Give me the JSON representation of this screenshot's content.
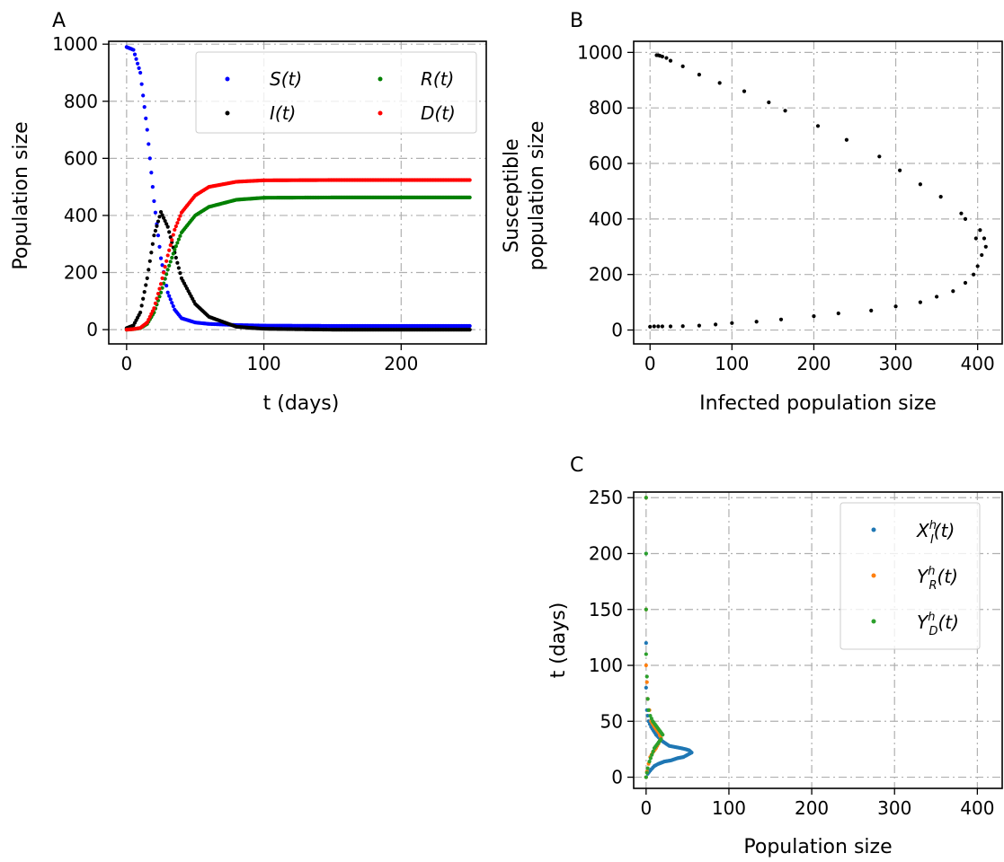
{
  "chart_data": [
    {
      "panel": "A",
      "type": "scatter",
      "xlabel": "t (days)",
      "ylabel": "Population size",
      "xlim": [
        -13,
        262
      ],
      "ylim": [
        -50,
        1010
      ],
      "xticks": [
        0,
        100,
        200
      ],
      "yticks": [
        0,
        200,
        400,
        600,
        800,
        1000
      ],
      "grid": true,
      "legend": "top-right, 2 columns",
      "series": [
        {
          "name": "S(t)",
          "color": "#0000ff",
          "x": [
            0,
            5,
            10,
            15,
            20,
            25,
            30,
            35,
            40,
            50,
            60,
            80,
            100,
            150,
            200,
            250
          ],
          "y": [
            990,
            980,
            900,
            700,
            450,
            250,
            130,
            70,
            40,
            25,
            20,
            16,
            14,
            13,
            13,
            13
          ]
        },
        {
          "name": "I(t)",
          "color": "#000000",
          "x": [
            0,
            5,
            10,
            15,
            20,
            25,
            30,
            35,
            40,
            50,
            60,
            80,
            100,
            150,
            200,
            250
          ],
          "y": [
            5,
            15,
            60,
            180,
            330,
            412,
            360,
            270,
            180,
            90,
            45,
            10,
            3,
            0,
            0,
            0
          ]
        },
        {
          "name": "R(t)",
          "color": "#008000",
          "x": [
            0,
            5,
            10,
            15,
            20,
            25,
            30,
            35,
            40,
            50,
            60,
            80,
            100,
            150,
            200,
            250
          ],
          "y": [
            0,
            2,
            5,
            20,
            60,
            130,
            210,
            280,
            340,
            400,
            430,
            455,
            462,
            463,
            463,
            463
          ]
        },
        {
          "name": "D(t)",
          "color": "#ff0000",
          "x": [
            0,
            5,
            10,
            15,
            20,
            25,
            30,
            35,
            40,
            50,
            60,
            80,
            100,
            150,
            200,
            250
          ],
          "y": [
            0,
            2,
            6,
            25,
            75,
            160,
            260,
            350,
            410,
            470,
            500,
            518,
            523,
            524,
            524,
            524
          ]
        }
      ]
    },
    {
      "panel": "B",
      "type": "scatter",
      "xlabel": "Infected population size",
      "ylabel": "Susceptible population size",
      "ylabel_lines": [
        "Susceptible",
        "population size"
      ],
      "xlim": [
        -20,
        430
      ],
      "ylim": [
        -50,
        1040
      ],
      "xticks": [
        0,
        100,
        200,
        300,
        400
      ],
      "yticks": [
        0,
        200,
        400,
        600,
        800,
        1000
      ],
      "grid": true,
      "series": [
        {
          "name": "",
          "color": "#000000",
          "x": [
            0,
            5,
            10,
            15,
            25,
            40,
            60,
            80,
            100,
            130,
            160,
            200,
            230,
            270,
            300,
            330,
            350,
            370,
            385,
            395,
            400,
            405,
            410,
            408,
            403,
            398,
            385,
            380,
            355,
            330,
            305,
            280,
            240,
            205,
            165,
            145,
            115,
            85,
            60,
            40,
            25,
            20,
            15,
            12,
            10,
            8
          ],
          "y": [
            12,
            13,
            13,
            13,
            13,
            14,
            16,
            20,
            25,
            30,
            38,
            50,
            60,
            70,
            85,
            100,
            120,
            140,
            170,
            200,
            230,
            270,
            300,
            330,
            360,
            330,
            400,
            420,
            480,
            525,
            575,
            625,
            685,
            735,
            790,
            820,
            860,
            890,
            920,
            950,
            970,
            980,
            985,
            988,
            990,
            990
          ]
        }
      ]
    },
    {
      "panel": "C",
      "type": "scatter",
      "xlabel": "Population size",
      "ylabel": "t (days)",
      "xlim": [
        -15,
        430
      ],
      "ylim": [
        -10,
        255
      ],
      "xticks": [
        0,
        100,
        200,
        300,
        400
      ],
      "yticks": [
        0,
        50,
        100,
        150,
        200,
        250
      ],
      "grid": true,
      "legend": "top-right",
      "series": [
        {
          "name": "X_I^h(t)",
          "color": "#1f77b4",
          "x": [
            0,
            2,
            5,
            10,
            15,
            22,
            30,
            38,
            45,
            50,
            55,
            52,
            48,
            42,
            35,
            28,
            20,
            12,
            6,
            3,
            2,
            1,
            0,
            0,
            0
          ],
          "y": [
            0,
            3,
            6,
            10,
            12,
            14,
            15,
            17,
            18,
            20,
            22,
            24,
            25,
            26,
            27,
            28,
            32,
            38,
            45,
            50,
            55,
            60,
            80,
            120,
            200
          ]
        },
        {
          "name": "Y_R^h(t)",
          "color": "#ff7f0e",
          "x": [
            0,
            1,
            3,
            5,
            8,
            12,
            15,
            18,
            15,
            10,
            6,
            4,
            2,
            1,
            0,
            0,
            0
          ],
          "y": [
            0,
            5,
            12,
            18,
            22,
            26,
            30,
            35,
            40,
            45,
            50,
            60,
            70,
            85,
            100,
            150,
            250
          ]
        },
        {
          "name": "Y_D^h(t)",
          "color": "#2ca02c",
          "x": [
            0,
            1,
            2,
            4,
            7,
            10,
            14,
            18,
            20,
            16,
            12,
            8,
            5,
            3,
            2,
            1,
            0,
            0,
            0,
            0
          ],
          "y": [
            0,
            4,
            8,
            14,
            20,
            26,
            30,
            34,
            38,
            42,
            46,
            50,
            55,
            60,
            70,
            90,
            110,
            150,
            200,
            250
          ]
        }
      ]
    }
  ],
  "panel_labels": [
    "A",
    "B",
    "C"
  ]
}
